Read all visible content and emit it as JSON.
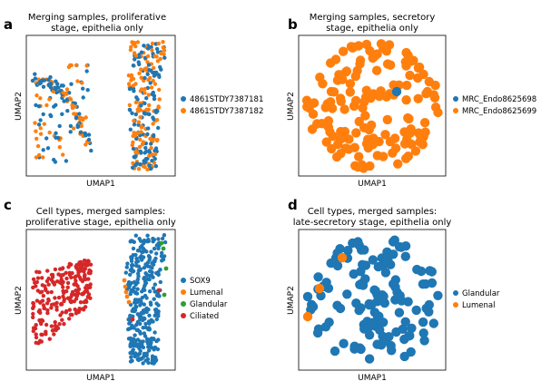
{
  "chart_data": [
    {
      "type": "scatter",
      "panel_label": "a",
      "title": "Merging samples, proliferative stage, epithelia only",
      "title_lines": [
        "Merging samples, proliferative",
        "stage, epithelia only"
      ],
      "xlabel": "UMAP1",
      "ylabel": "UMAP2",
      "grid": false,
      "legend_position": "right",
      "series": [
        {
          "name": "4861STDY7387181",
          "color": "#1f77b4"
        },
        {
          "name": "4861STDY7387182",
          "color": "#ff7f0e"
        }
      ]
    },
    {
      "type": "scatter",
      "panel_label": "b",
      "title": "Merging samples, secretory stage, epithelia only",
      "title_lines": [
        "Merging samples, secretory",
        "stage, epithelia only"
      ],
      "xlabel": "UMAP1",
      "ylabel": "UMAP2",
      "grid": false,
      "legend_position": "right",
      "series": [
        {
          "name": "MRC_Endo8625698",
          "color": "#1f77b4"
        },
        {
          "name": "MRC_Endo8625699",
          "color": "#ff7f0e"
        }
      ]
    },
    {
      "type": "scatter",
      "panel_label": "c",
      "title": "Cell types, merged samples: proliferative stage, epithelia only",
      "title_lines": [
        "Cell types, merged samples:",
        "proliferative stage, epithelia only"
      ],
      "xlabel": "UMAP1",
      "ylabel": "UMAP2",
      "grid": false,
      "legend_position": "right",
      "series": [
        {
          "name": "SOX9",
          "color": "#1f77b4"
        },
        {
          "name": "Lumenal",
          "color": "#ff7f0e"
        },
        {
          "name": "Glandular",
          "color": "#2ca02c"
        },
        {
          "name": "Ciliated",
          "color": "#d62728"
        }
      ]
    },
    {
      "type": "scatter",
      "panel_label": "d",
      "title": "Cell types, merged samples: late-secretory stage, epithelia only",
      "title_lines": [
        "Cell types, merged samples:",
        "late-secretory stage, epithelia only"
      ],
      "xlabel": "UMAP1",
      "ylabel": "UMAP2",
      "grid": false,
      "legend_position": "right",
      "series": [
        {
          "name": "Glandular",
          "color": "#1f77b4"
        },
        {
          "name": "Lumenal",
          "color": "#ff7f0e"
        }
      ]
    }
  ]
}
